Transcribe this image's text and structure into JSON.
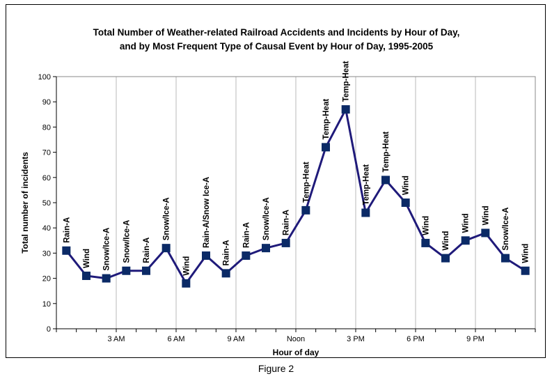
{
  "caption": "Figure 2",
  "chart_data": {
    "type": "line",
    "title": [
      "Total Number of Weather-related Railroad Accidents and Incidents by Hour of Day,",
      "and by Most Frequent Type of Causal Event by Hour of Day, 1995-2005"
    ],
    "xlabel": "Hour of day",
    "ylabel": "Total number of incidents",
    "ylim": [
      0,
      100
    ],
    "yticks": [
      0,
      10,
      20,
      30,
      40,
      50,
      60,
      70,
      80,
      90,
      100
    ],
    "x_tick_labels": [
      {
        "hour": 3,
        "label": "3 AM"
      },
      {
        "hour": 6,
        "label": "6 AM"
      },
      {
        "hour": 9,
        "label": "9 AM"
      },
      {
        "hour": 12,
        "label": "Noon"
      },
      {
        "hour": 15,
        "label": "3 PM"
      },
      {
        "hour": 18,
        "label": "6 PM"
      },
      {
        "hour": 21,
        "label": "9 PM"
      }
    ],
    "grid": "vertical",
    "colors": {
      "line": "#1f1a7a",
      "marker": "#0b2a66"
    },
    "x": [
      1,
      2,
      3,
      4,
      5,
      6,
      7,
      8,
      9,
      10,
      11,
      12,
      13,
      14,
      15,
      16,
      17,
      18,
      19,
      20,
      21,
      22,
      23,
      24
    ],
    "values": [
      31,
      21,
      20,
      23,
      23,
      32,
      18,
      29,
      22,
      29,
      32,
      34,
      47,
      72,
      87,
      46,
      59,
      50,
      34,
      28,
      35,
      38,
      28,
      23
    ],
    "point_labels": [
      "Rain-A",
      "Wind",
      "Snow/Ice-A",
      "Snow/Ice-A",
      "Rain-A",
      "Snow/Ice-A",
      "Wind",
      "Rain-A/Snow Ice-A",
      "Rain-A",
      "Rain-A",
      "Snow/Ice-A",
      "Rain-A",
      "Temp-Heat",
      "Temp-Heat",
      "Temp-Heat",
      "Temp-Heat",
      "Temp-Heat",
      "Wind",
      "Wind",
      "Wind",
      "Wind",
      "Wind",
      "Snow/Ice-A",
      "Wind"
    ]
  }
}
